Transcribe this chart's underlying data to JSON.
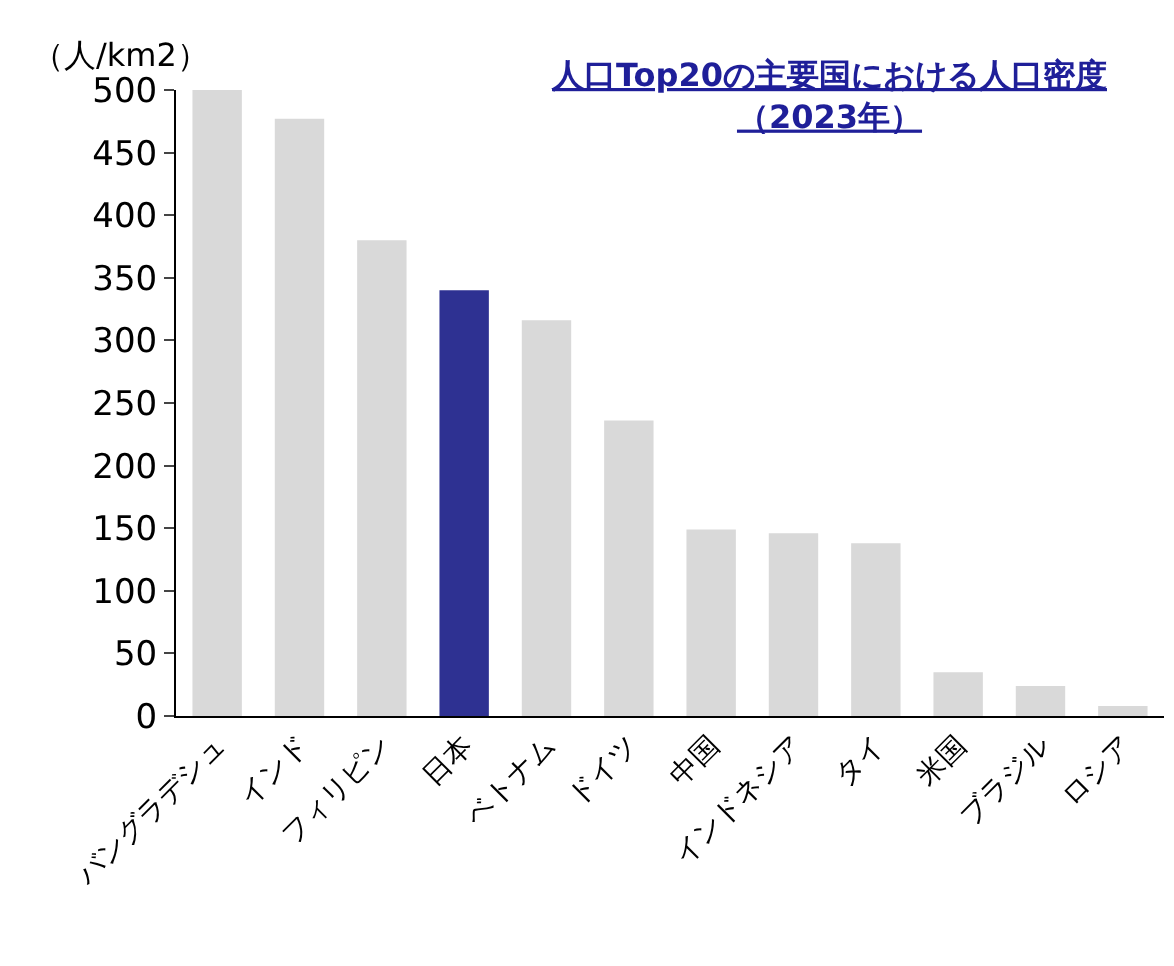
{
  "chart_data": {
    "type": "bar",
    "title": "人口Top20の主要国における人口密度",
    "subtitle": "（2023年）",
    "ylabel": "（人/km2）",
    "categories": [
      "バングラデシュ",
      "インド",
      "フィリピン",
      "日本",
      "ベトナム",
      "ドイツ",
      "中国",
      "インドネシア",
      "タイ",
      "米国",
      "ブラジル",
      "ロシア"
    ],
    "values": [
      500,
      477,
      380,
      340,
      316,
      236,
      149,
      146,
      138,
      35,
      24,
      8
    ],
    "colors": [
      "#d9d9d9",
      "#d9d9d9",
      "#d9d9d9",
      "#2e3192",
      "#d9d9d9",
      "#d9d9d9",
      "#d9d9d9",
      "#d9d9d9",
      "#d9d9d9",
      "#d9d9d9",
      "#d9d9d9",
      "#d9d9d9"
    ],
    "ylim": [
      0,
      500
    ],
    "yticks": [
      0,
      50,
      100,
      150,
      200,
      250,
      300,
      350,
      400,
      450,
      500
    ]
  }
}
